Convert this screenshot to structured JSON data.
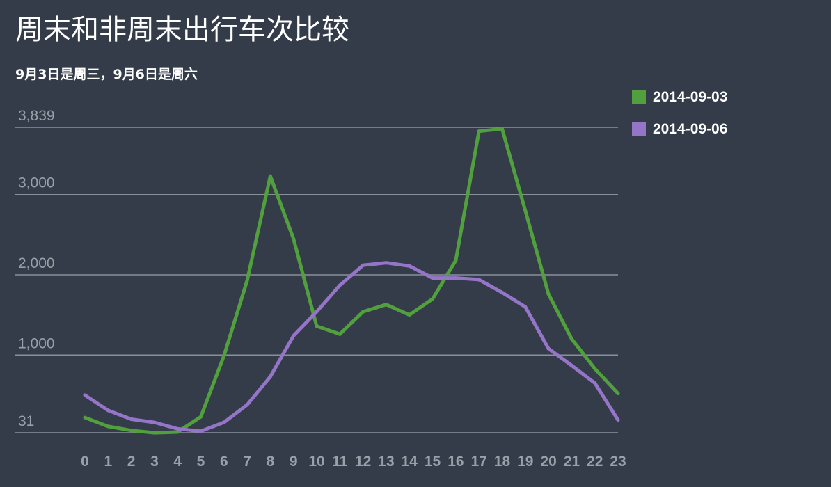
{
  "colors": {
    "background": "#343c4a",
    "grid": "#8a9099",
    "tick_text": "#9aa0a8",
    "text": "#ffffff"
  },
  "chart_data": {
    "type": "line",
    "title": "周末和非周末出行车次比较",
    "subtitle": "9月3日是周三，9月6日是周六",
    "xlabel": "",
    "ylabel": "",
    "x": [
      0,
      1,
      2,
      3,
      4,
      5,
      6,
      7,
      8,
      9,
      10,
      11,
      12,
      13,
      14,
      15,
      16,
      17,
      18,
      19,
      20,
      21,
      22,
      23
    ],
    "x_tick_labels": [
      "0",
      "1",
      "2",
      "3",
      "4",
      "5",
      "6",
      "7",
      "8",
      "9",
      "10",
      "11",
      "12",
      "13",
      "14",
      "15",
      "16",
      "17",
      "18",
      "19",
      "20",
      "21",
      "22",
      "23"
    ],
    "ylim": [
      31,
      3839
    ],
    "y_ticks": [
      31,
      1000,
      2000,
      3000,
      3839
    ],
    "y_tick_labels": [
      "31",
      "1,000",
      "2,000",
      "3,000",
      "3,839"
    ],
    "grid": true,
    "legend_position": "top-right",
    "series": [
      {
        "name": "2014-09-03",
        "color": "#52a03d",
        "values": [
          220,
          110,
          60,
          30,
          40,
          230,
          990,
          1930,
          3230,
          2450,
          1360,
          1260,
          1540,
          1630,
          1500,
          1700,
          2180,
          3790,
          3820,
          2800,
          1760,
          1200,
          830,
          520
        ]
      },
      {
        "name": "2014-09-06",
        "color": "#9575c7",
        "values": [
          500,
          310,
          200,
          160,
          80,
          50,
          160,
          380,
          730,
          1240,
          1540,
          1870,
          2120,
          2150,
          2110,
          1960,
          1960,
          1940,
          1780,
          1600,
          1080,
          870,
          650,
          190
        ]
      }
    ]
  }
}
